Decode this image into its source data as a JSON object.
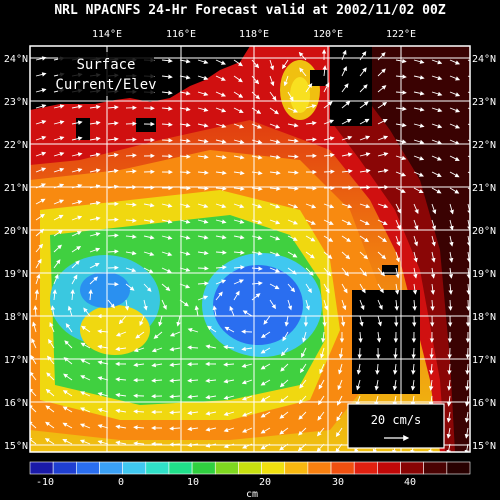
{
  "title": "NRL NPACNFS 24-Hr Forecast valid at 2002/11/02 00Z",
  "panel_label_line1": "Surface",
  "panel_label_line2": "Current/Elev",
  "lon_labels": [
    "114°E",
    "116°E",
    "118°E",
    "120°E",
    "122°E"
  ],
  "lat_labels": [
    "24°N",
    "23°N",
    "22°N",
    "21°N",
    "20°N",
    "19°N",
    "18°N",
    "17°N",
    "16°N",
    "15°N"
  ],
  "reference_vector_label": "20 cm/s",
  "colorbar": {
    "tick_labels": [
      "-10",
      "0",
      "10",
      "20",
      "30",
      "40"
    ],
    "unit": "cm",
    "colors": [
      "#1a1aa8",
      "#1f3fd1",
      "#2a6ef0",
      "#3aa0f5",
      "#40c8f0",
      "#30e0c8",
      "#20e08a",
      "#30d040",
      "#7fd820",
      "#c8e010",
      "#f0e010",
      "#f8b810",
      "#f88010",
      "#f05010",
      "#e02010",
      "#c00808",
      "#880404",
      "#4a0202",
      "#280000"
    ]
  },
  "colors": {
    "land": "#000000",
    "grid": "#ffffff",
    "vector": "#ffffff"
  }
}
